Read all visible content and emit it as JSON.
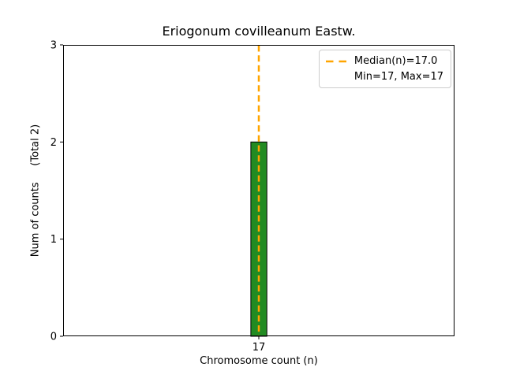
{
  "chart_data": {
    "type": "bar",
    "title": "Eriogonum covilleanum Eastw.",
    "xlabel": "Chromosome count (n)",
    "ylabel": "Num of counts     (Total 2)",
    "x": [
      17
    ],
    "values": [
      2
    ],
    "total_counts": 2,
    "median": 17.0,
    "min": 17,
    "max": 17,
    "xlim": [
      16.45,
      17.55
    ],
    "ylim": [
      0,
      3
    ],
    "xticks": [
      17
    ],
    "yticks": [
      0,
      1,
      2,
      3
    ],
    "grid": false,
    "bar": {
      "width": 0.045,
      "fill": "#228B22",
      "edge": "#000000"
    },
    "median_line": {
      "x": 17.0,
      "color": "#FFA500",
      "style": "dashed"
    },
    "axis_color": "#000000",
    "legend": {
      "position": "upper right",
      "border_color": "#cccccc",
      "entries": [
        {
          "label": "Median(n)=17.0",
          "marker": "dashed-line",
          "color": "#FFA500"
        },
        {
          "label": "Min=17, Max=17",
          "marker": "none",
          "color": ""
        }
      ]
    }
  }
}
